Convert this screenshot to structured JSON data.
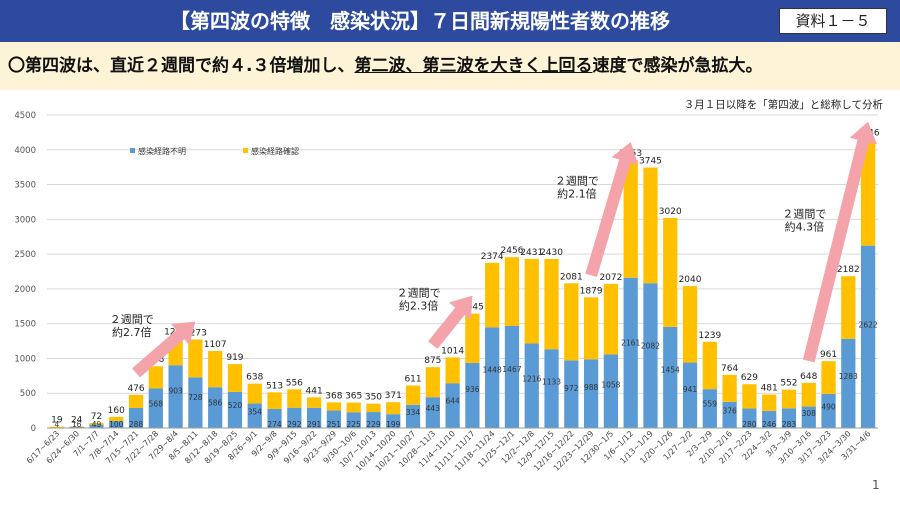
{
  "header": {
    "title": "【第四波の特徴　感染状況】７日間新規陽性者数の推移",
    "badge": "資料１－５"
  },
  "summary": {
    "prefix": "〇第四波は、直近２週間で約４.３倍増加し、",
    "underlined": "第二波、第三波を大きく上回る",
    "suffix": "速度で感染が急拡大。"
  },
  "page_number": "1",
  "colors": {
    "unknown": "#5b9bd5",
    "known": "#ffc000",
    "arrow": "#f4a3aa",
    "title_bg": "#2e4a9e",
    "band": "#fdf3d6"
  },
  "chart_data": {
    "type": "bar",
    "stacked": true,
    "note": "３月１日以降を「第四波」と総称して分析",
    "ylim": [
      0,
      4500
    ],
    "yticks": [
      0,
      500,
      1000,
      1500,
      2000,
      2500,
      3000,
      3500,
      4000,
      4500
    ],
    "legend_position": "top-left",
    "categories": [
      "6/17~6/23",
      "6/24~6/30",
      "7/1~7/7",
      "7/8~7/14",
      "7/15~7/21",
      "7/22~7/28",
      "7/29~8/4",
      "8/5~8/11",
      "8/12~8/18",
      "8/19~8/25",
      "8/26~9/1",
      "9/2~9/8",
      "9/9~9/15",
      "9/16~9/22",
      "9/23~9/29",
      "9/30~10/6",
      "10/7~10/13",
      "10/14~10/20",
      "10/21~10/27",
      "10/28~11/3",
      "11/4~11/10",
      "11/11~11/17",
      "11/18~11/24",
      "11/25~12/1",
      "12/2~12/8",
      "12/9~12/15",
      "12/16~12/22",
      "12/23~12/29",
      "12/30~1/5",
      "1/6~1/12",
      "1/13~1/19",
      "1/20~1/26",
      "1/27~2/2",
      "2/3~2/9",
      "2/10~2/16",
      "2/17~2/23",
      "2/24~3/2",
      "3/3~3/9",
      "3/10~3/16",
      "3/17~3/23",
      "3/24~3/30",
      "3/31~4/6"
    ],
    "totals": [
      19,
      24,
      72,
      160,
      476,
      888,
      1290,
      1273,
      1107,
      919,
      638,
      513,
      556,
      441,
      368,
      365,
      350,
      371,
      611,
      875,
      1014,
      1645,
      2374,
      2456,
      2431,
      2430,
      2081,
      1879,
      2072,
      3853,
      3745,
      3020,
      2040,
      1239,
      764,
      629,
      481,
      552,
      648,
      961,
      2182,
      4146
    ],
    "series": [
      {
        "name": "感染経路不明",
        "values": [
          4,
          16,
          49,
          100,
          288,
          568,
          903,
          728,
          586,
          520,
          354,
          274,
          292,
          291,
          251,
          225,
          229,
          199,
          334,
          443,
          644,
          936,
          1448,
          1467,
          1216,
          1133,
          972,
          988,
          1058,
          2161,
          2082,
          1454,
          941,
          559,
          376,
          280,
          246,
          283,
          308,
          490,
          1283,
          2622
        ]
      },
      {
        "name": "感染経路確認",
        "values": [
          15,
          8,
          23,
          60,
          188,
          320,
          387,
          545,
          521,
          399,
          284,
          239,
          264,
          150,
          117,
          140,
          121,
          172,
          277,
          432,
          370,
          709,
          926,
          989,
          1215,
          1297,
          1109,
          891,
          1014,
          1692,
          1663,
          1566,
          1099,
          680,
          388,
          349,
          235,
          269,
          340,
          471,
          899,
          1524
        ]
      }
    ],
    "annotations": [
      {
        "text": [
          "２週間で",
          "約2.7倍"
        ],
        "from_index": 4,
        "to_index": 7
      },
      {
        "text": [
          "２週間で",
          "約2.3倍"
        ],
        "from_index": 19,
        "to_index": 21
      },
      {
        "text": [
          "２週間で",
          "約2.1倍"
        ],
        "from_index": 27,
        "to_index": 29
      },
      {
        "text": [
          "２週間で",
          "約4.3倍"
        ],
        "from_index": 38,
        "to_index": 41
      }
    ]
  }
}
